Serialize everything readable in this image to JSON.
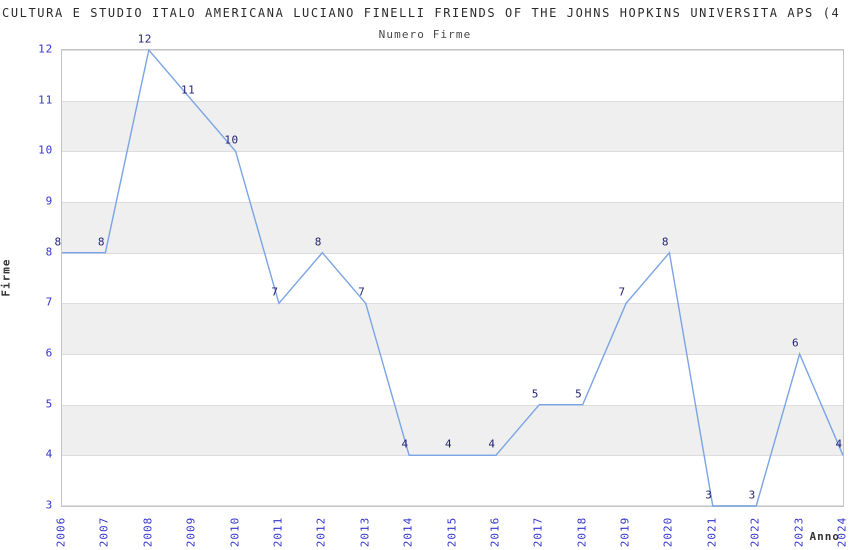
{
  "title": "CULTURA E STUDIO ITALO AMERICANA LUCIANO FINELLI FRIENDS OF THE JOHNS HOPKINS UNIVERSITA APS (4",
  "chart_data": {
    "type": "line",
    "title": "Numero Firme",
    "xlabel": "Anno",
    "ylabel": "Firme",
    "x": [
      2006,
      2007,
      2008,
      2009,
      2010,
      2011,
      2012,
      2013,
      2014,
      2015,
      2016,
      2017,
      2018,
      2019,
      2020,
      2021,
      2022,
      2023,
      2024
    ],
    "values": [
      8,
      8,
      12,
      11,
      10,
      7,
      8,
      7,
      4,
      4,
      4,
      5,
      5,
      7,
      8,
      3,
      3,
      6,
      4
    ],
    "ylim": [
      3,
      12
    ],
    "yticks": [
      3,
      4,
      5,
      6,
      7,
      8,
      9,
      10,
      11,
      12
    ],
    "grid": true,
    "legend": "none",
    "shaded_bands": [
      [
        4,
        5
      ],
      [
        6,
        7
      ],
      [
        8,
        9
      ],
      [
        10,
        11
      ]
    ],
    "colors": {
      "line": "#7aa4e4",
      "tick_label": "#3333cc",
      "data_label": "#222277",
      "band": "#efefef",
      "grid": "#dddddd",
      "border": "#c4c4c4",
      "title": "#2b2b2b",
      "subtitle": "#474747",
      "axis_title": "#333333"
    }
  }
}
